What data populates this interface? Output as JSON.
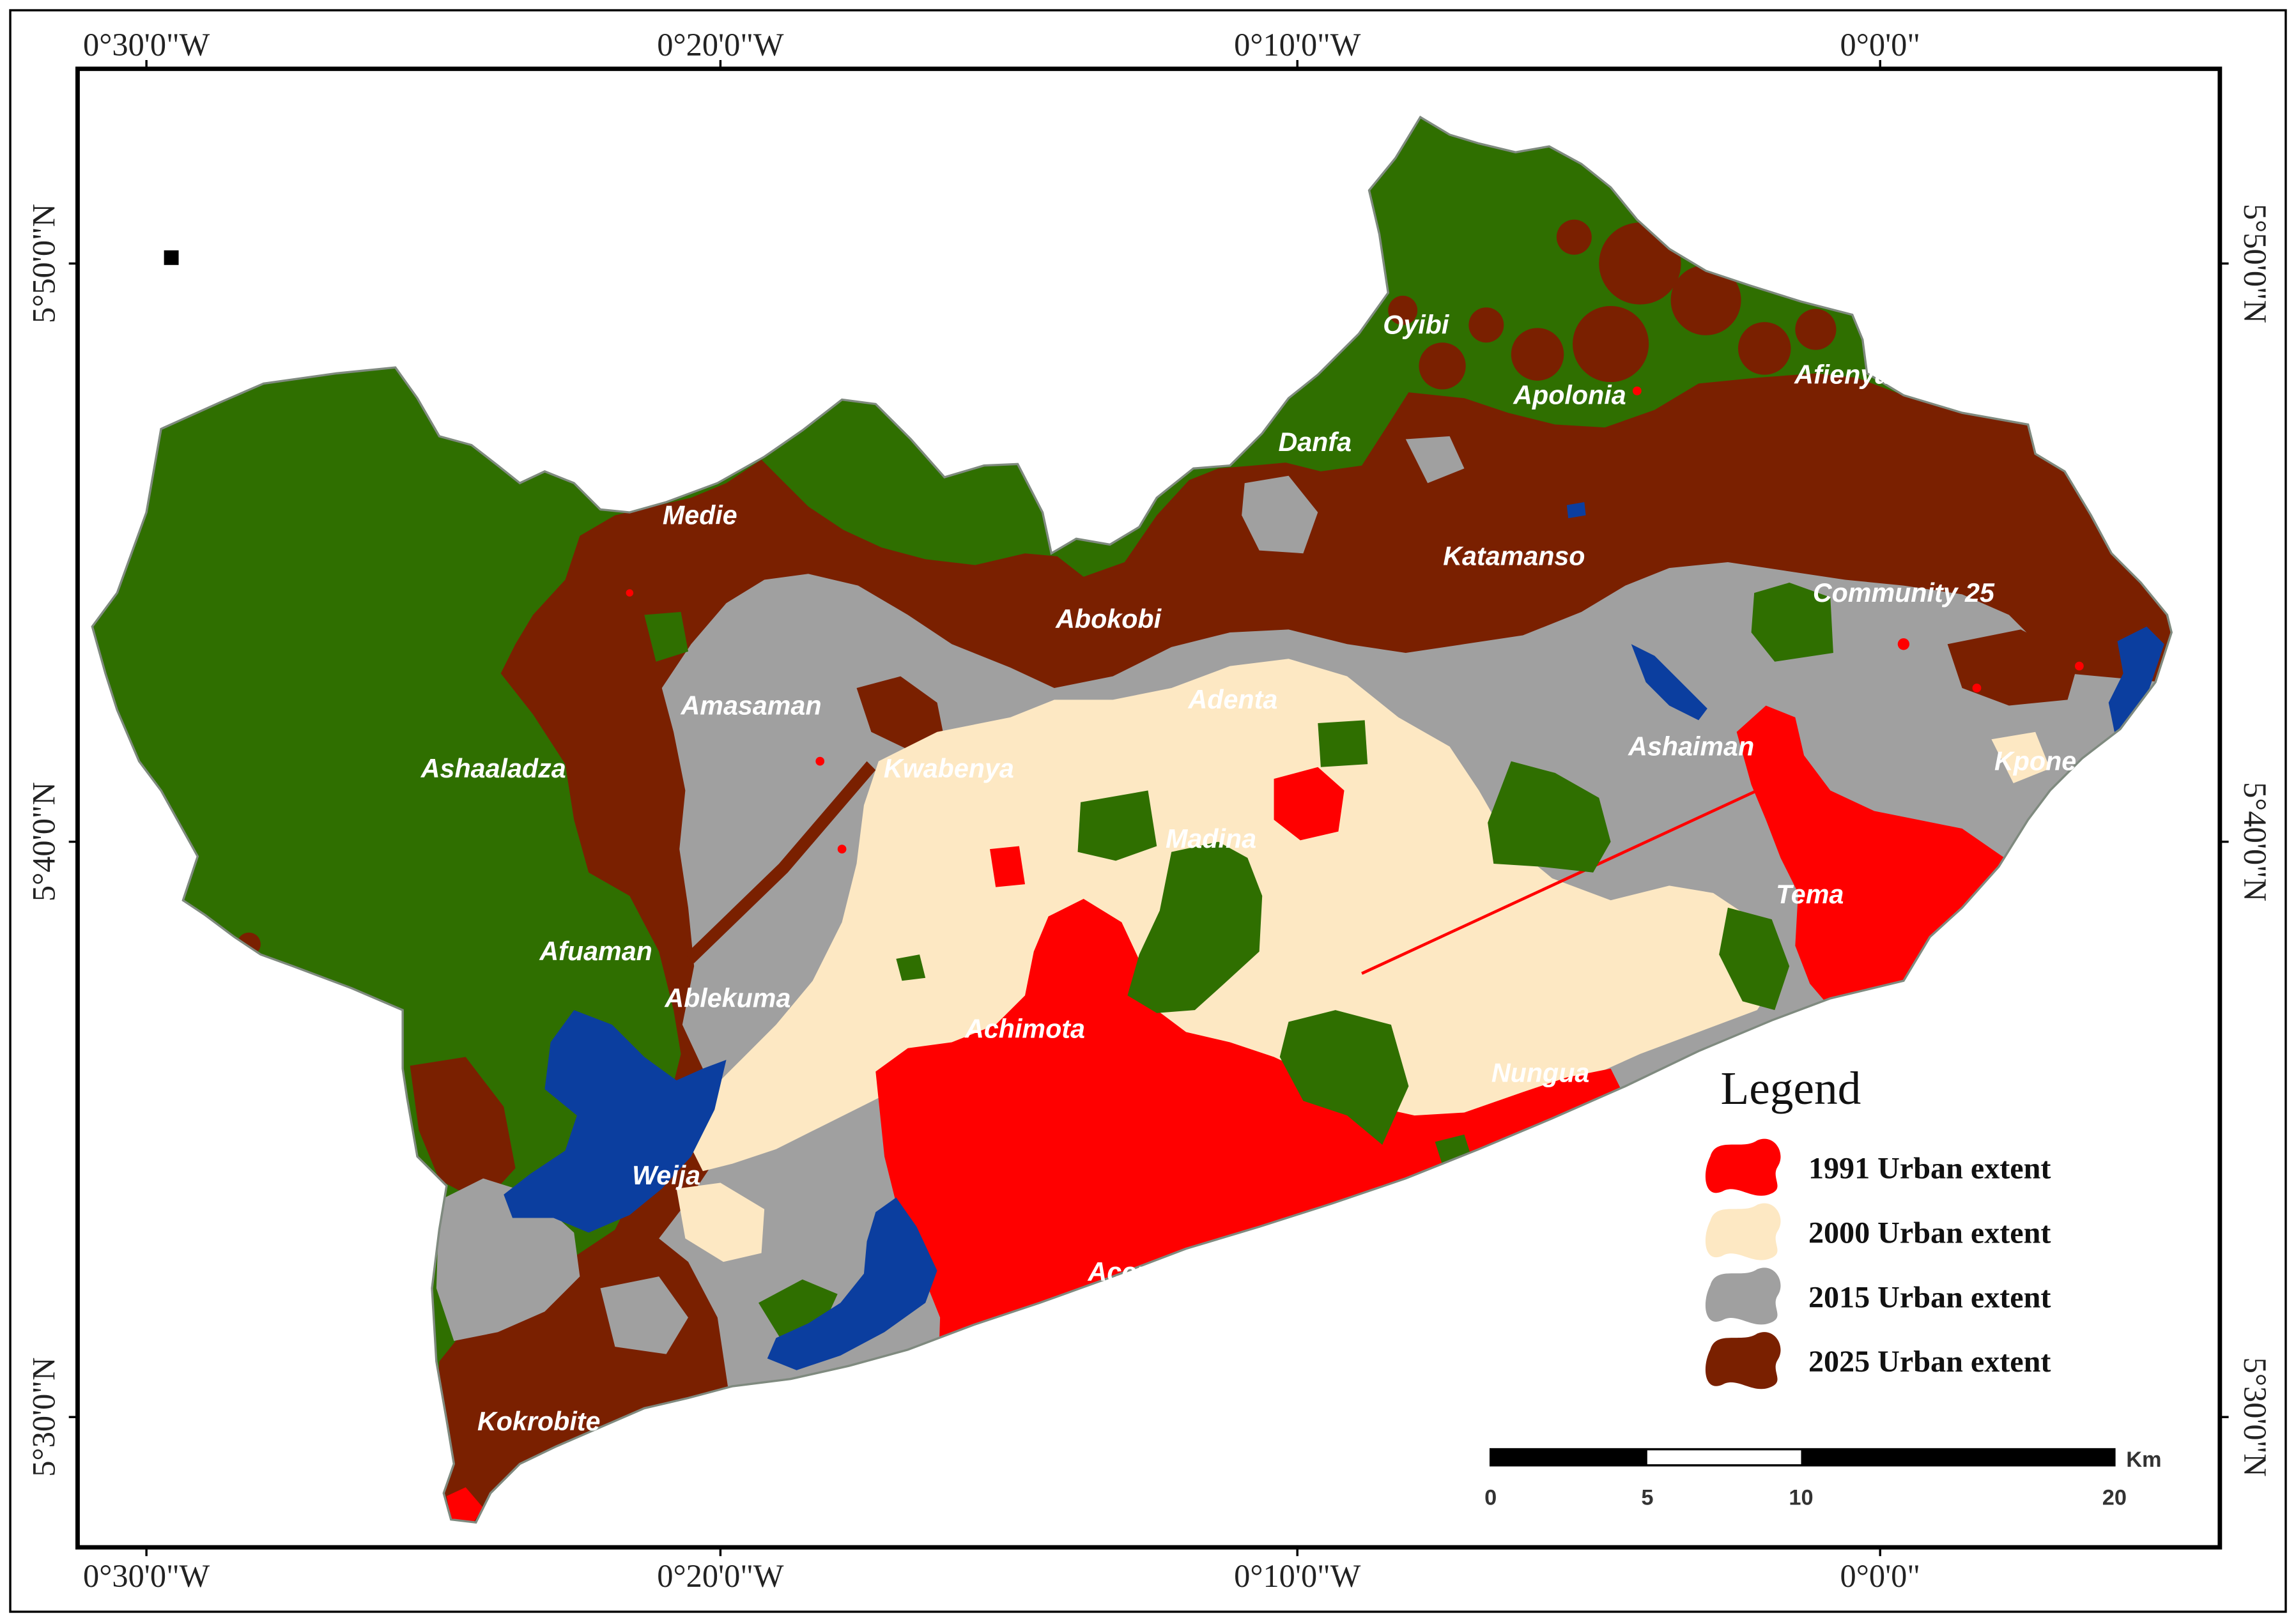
{
  "map": {
    "graticule": {
      "top": [
        "0°30'0\"W",
        "0°20'0\"W",
        "0°10'0\"W",
        "0°0'0\""
      ],
      "bottom": [
        "0°30'0\"W",
        "0°20'0\"W",
        "0°10'0\"W",
        "0°0'0\""
      ],
      "left": [
        "5°50'0\"N",
        "5°40'0\"N",
        "5°30'0\"N"
      ],
      "right": [
        "5°50'0\"N",
        "5°40'0\"N",
        "5°30'0\"N"
      ]
    },
    "places": {
      "medie": "Medie",
      "oyibi": "Oyibi",
      "apolonia": "Apolonia",
      "afienya": "Afienya",
      "danfa": "Danfa",
      "katamanso": "Katamanso",
      "community_25": "Community 25",
      "abokobi": "Abokobi",
      "amasaman": "Amasaman",
      "adenta": "Adenta",
      "ashaaladza": "Ashaaladza",
      "kwabenya": "Kwabenya",
      "ashaiman": "Ashaiman",
      "kpone": "Kpone",
      "madina": "Madina",
      "tema": "Tema",
      "afuaman": "Afuaman",
      "ablekuma": "Ablekuma",
      "achimota": "Achimota",
      "nungua": "Nungua",
      "weija": "Weija",
      "accra": "Accra",
      "kokrobite": "Kokrobite"
    },
    "land_cover_colors": {
      "non_urban": "#2F6F00",
      "water": "#0B3E9F",
      "boundary": "#7F8A7F"
    }
  },
  "legend": {
    "title": "Legend",
    "items": [
      {
        "label": "1991 Urban extent",
        "color": "#FF0000"
      },
      {
        "label": "2000 Urban extent",
        "color": "#FDE8C3"
      },
      {
        "label": "2015 Urban extent",
        "color": "#A0A0A0"
      },
      {
        "label": "2025 Urban extent",
        "color": "#7A2000"
      }
    ]
  },
  "scale_bar": {
    "ticks": [
      "0",
      "5",
      "10",
      "20"
    ],
    "unit": "Km"
  }
}
